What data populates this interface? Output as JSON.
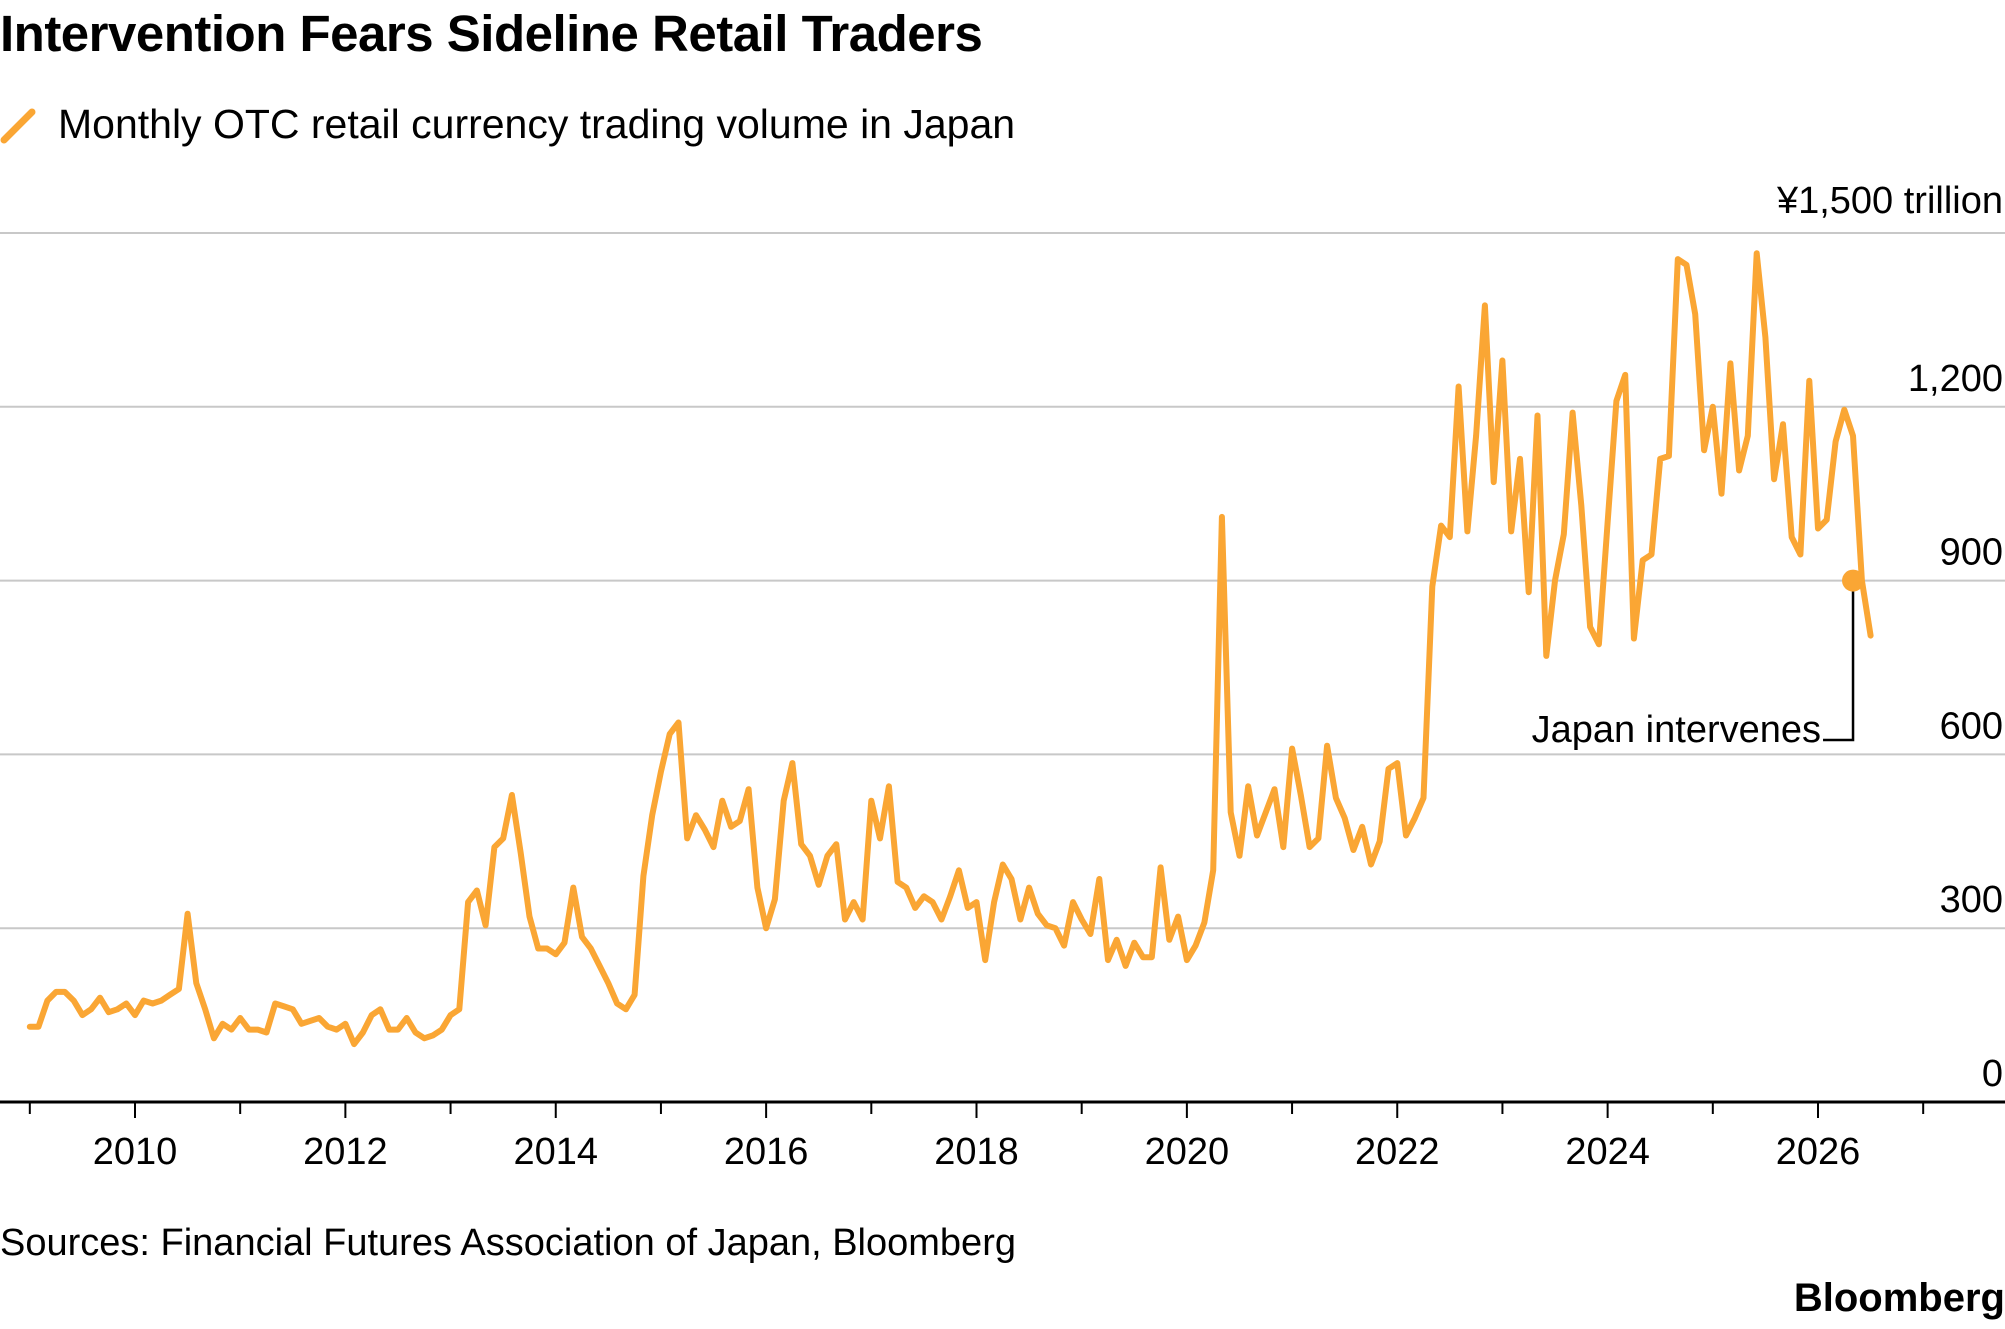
{
  "header": {
    "title": "Intervention Fears Sideline Retail Traders",
    "legend_label": "Monthly OTC retail currency trading volume in Japan"
  },
  "footer": {
    "source": "Sources: Financial Futures Association of Japan, Bloomberg",
    "brand": "Bloomberg"
  },
  "colors": {
    "series": "#FAA634",
    "grid": "#C8C8C8",
    "axis": "#000000"
  },
  "chart_data": {
    "type": "line",
    "title": "Intervention Fears Sideline Retail Traders",
    "subtitle": "Monthly OTC retail currency trading volume in Japan",
    "y_unit_label": "¥1,500 trillion",
    "yticks": [
      0,
      300,
      600,
      900,
      1200
    ],
    "ytick_labels": [
      "0",
      "300",
      "600",
      "900",
      "1,200"
    ],
    "ylim": [
      0,
      1500
    ],
    "xticks": [
      2010,
      2012,
      2014,
      2016,
      2018,
      2020,
      2022,
      2024,
      2026
    ],
    "xtick_labels": [
      "2010",
      "2012",
      "2014",
      "2016",
      "2018",
      "2020",
      "2022",
      "2024",
      "2026"
    ],
    "xlim": [
      2008.8,
      2027.5
    ],
    "grid": true,
    "legend_position": "top-left",
    "series": [
      {
        "name": "Monthly OTC retail currency trading volume in Japan",
        "x": [
          2009.0,
          2009.083,
          2009.167,
          2009.25,
          2009.333,
          2009.417,
          2009.5,
          2009.583,
          2009.667,
          2009.75,
          2009.833,
          2009.917,
          2010.0,
          2010.083,
          2010.167,
          2010.25,
          2010.333,
          2010.417,
          2010.5,
          2010.583,
          2010.667,
          2010.75,
          2010.833,
          2010.917,
          2011.0,
          2011.083,
          2011.167,
          2011.25,
          2011.333,
          2011.417,
          2011.5,
          2011.583,
          2011.667,
          2011.75,
          2011.833,
          2011.917,
          2012.0,
          2012.083,
          2012.167,
          2012.25,
          2012.333,
          2012.417,
          2012.5,
          2012.583,
          2012.667,
          2012.75,
          2012.833,
          2012.917,
          2013.0,
          2013.083,
          2013.167,
          2013.25,
          2013.333,
          2013.417,
          2013.5,
          2013.583,
          2013.667,
          2013.75,
          2013.833,
          2013.917,
          2014.0,
          2014.083,
          2014.167,
          2014.25,
          2014.333,
          2014.417,
          2014.5,
          2014.583,
          2014.667,
          2014.75,
          2014.833,
          2014.917,
          2015.0,
          2015.083,
          2015.167,
          2015.25,
          2015.333,
          2015.417,
          2015.5,
          2015.583,
          2015.667,
          2015.75,
          2015.833,
          2015.917,
          2016.0,
          2016.083,
          2016.167,
          2016.25,
          2016.333,
          2016.417,
          2016.5,
          2016.583,
          2016.667,
          2016.75,
          2016.833,
          2016.917,
          2017.0,
          2017.083,
          2017.167,
          2017.25,
          2017.333,
          2017.417,
          2017.5,
          2017.583,
          2017.667,
          2017.75,
          2017.833,
          2017.917,
          2018.0,
          2018.083,
          2018.167,
          2018.25,
          2018.333,
          2018.417,
          2018.5,
          2018.583,
          2018.667,
          2018.75,
          2018.833,
          2018.917,
          2019.0,
          2019.083,
          2019.167,
          2019.25,
          2019.333,
          2019.417,
          2019.5,
          2019.583,
          2019.667,
          2019.75,
          2019.833,
          2019.917,
          2020.0,
          2020.083,
          2020.167,
          2020.25,
          2020.333,
          2020.417,
          2020.5,
          2020.583,
          2020.667,
          2020.75,
          2020.833,
          2020.917,
          2021.0,
          2021.083,
          2021.167,
          2021.25,
          2021.333,
          2021.417,
          2021.5,
          2021.583,
          2021.667,
          2021.75,
          2021.833,
          2021.917,
          2022.0,
          2022.083,
          2022.167,
          2022.25,
          2022.333,
          2022.417,
          2022.5,
          2022.583,
          2022.667,
          2022.75,
          2022.833,
          2022.917,
          2023.0,
          2023.083,
          2023.167,
          2023.25,
          2023.333,
          2023.417,
          2023.5,
          2023.583,
          2023.667,
          2023.75,
          2023.833,
          2023.917,
          2024.0,
          2024.083,
          2024.167,
          2024.25,
          2024.333,
          2024.417,
          2024.5,
          2024.583,
          2024.667,
          2024.75,
          2024.833,
          2024.917,
          2025.0,
          2025.083,
          2025.167,
          2025.25,
          2025.333,
          2025.417,
          2025.5,
          2025.583,
          2025.667,
          2025.75,
          2025.833,
          2025.917,
          2026.0,
          2026.083,
          2026.167,
          2026.25,
          2026.333,
          2026.417,
          2026.5
        ],
        "values": [
          130,
          130,
          175,
          190,
          190,
          175,
          150,
          160,
          180,
          155,
          160,
          170,
          150,
          175,
          170,
          175,
          185,
          195,
          325,
          205,
          160,
          110,
          135,
          125,
          145,
          125,
          125,
          120,
          170,
          165,
          160,
          135,
          140,
          145,
          130,
          125,
          135,
          100,
          120,
          150,
          160,
          125,
          125,
          145,
          120,
          110,
          115,
          125,
          150,
          160,
          345,
          365,
          305,
          440,
          455,
          530,
          430,
          320,
          265,
          265,
          255,
          275,
          370,
          285,
          265,
          235,
          205,
          170,
          160,
          185,
          390,
          495,
          570,
          635,
          655,
          455,
          495,
          470,
          440,
          520,
          475,
          485,
          540,
          370,
          300,
          350,
          520,
          585,
          445,
          425,
          375,
          425,
          445,
          315,
          345,
          315,
          520,
          455,
          545,
          380,
          370,
          335,
          355,
          345,
          315,
          355,
          400,
          335,
          345,
          245,
          345,
          410,
          385,
          315,
          370,
          325,
          305,
          300,
          270,
          345,
          315,
          290,
          385,
          245,
          280,
          235,
          275,
          250,
          250,
          405,
          280,
          320,
          245,
          270,
          310,
          400,
          1010,
          500,
          425,
          545,
          460,
          500,
          540,
          440,
          610,
          530,
          440,
          455,
          615,
          525,
          490,
          435,
          475,
          410,
          450,
          575,
          585,
          460,
          490,
          525,
          890,
          995,
          975,
          1235,
          985,
          1150,
          1375,
          1070,
          1280,
          985,
          1110,
          880,
          1185,
          770,
          900,
          980,
          1190,
          1030,
          820,
          790,
          1000,
          1210,
          1255,
          800,
          935,
          945,
          1110,
          1115,
          1455,
          1445,
          1360,
          1125,
          1200,
          1050,
          1275,
          1090,
          1150,
          1465,
          1320,
          1075,
          1170,
          975,
          945,
          1245,
          990,
          1005,
          1140,
          1195,
          1150,
          900,
          805
        ]
      }
    ],
    "annotation": {
      "text": "Japan intervenes",
      "x": 2026.333,
      "value": 900
    }
  }
}
